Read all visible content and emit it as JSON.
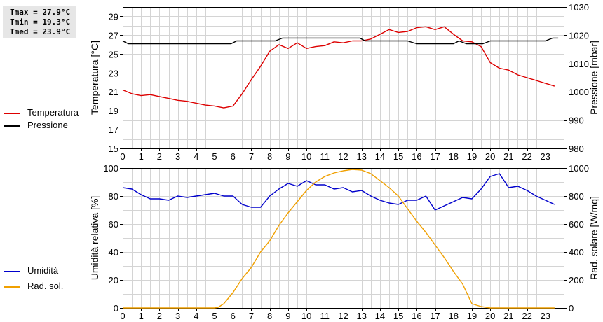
{
  "stats": {
    "tmax": "Tmax = 27.9°C",
    "tmin": "Tmin = 19.3°C",
    "tmed": "Tmed = 23.9°C"
  },
  "legend": {
    "temperature": "Temperatura",
    "pressure": "Pressione",
    "humidity": "Umidità",
    "radiation": "Rad. sol."
  },
  "colors": {
    "temperature": "#dd0000",
    "pressure": "#000000",
    "humidity": "#0000cc",
    "radiation": "#f0a000",
    "grid": "#d4d4d4"
  },
  "chart_data": [
    {
      "type": "line",
      "title": "",
      "xlim": [
        0,
        24
      ],
      "x_ticks": [
        0,
        1,
        2,
        3,
        4,
        5,
        6,
        7,
        8,
        9,
        10,
        11,
        12,
        13,
        14,
        15,
        16,
        17,
        18,
        19,
        20,
        21,
        22,
        23
      ],
      "grid": true,
      "left_axis": {
        "label": "Temperatura [°C]",
        "lim": [
          15,
          30
        ],
        "ticks": [
          15,
          17,
          19,
          21,
          23,
          25,
          27,
          29
        ]
      },
      "right_axis": {
        "label": "Pressione [mbar]",
        "lim": [
          980,
          1030
        ],
        "ticks": [
          980,
          990,
          1000,
          1010,
          1020,
          1030
        ]
      },
      "series": [
        {
          "name": "Temperatura",
          "axis": "left",
          "x": [
            0,
            0.5,
            1,
            1.5,
            2,
            2.5,
            3,
            3.5,
            4,
            4.5,
            5,
            5.5,
            6,
            6.5,
            7,
            7.5,
            8,
            8.5,
            9,
            9.5,
            10,
            10.5,
            11,
            11.5,
            12,
            12.5,
            13,
            13.5,
            14,
            14.5,
            15,
            15.5,
            16,
            16.5,
            17,
            17.5,
            18,
            18.5,
            19,
            19.5,
            20,
            20.5,
            21,
            21.5,
            22,
            22.5,
            23,
            23.5
          ],
          "y": [
            21.2,
            20.8,
            20.6,
            20.7,
            20.5,
            20.3,
            20.1,
            20.0,
            19.8,
            19.6,
            19.5,
            19.3,
            19.5,
            20.8,
            22.3,
            23.7,
            25.3,
            26.0,
            25.6,
            26.2,
            25.6,
            25.8,
            25.9,
            26.3,
            26.2,
            26.4,
            26.4,
            26.6,
            27.1,
            27.6,
            27.3,
            27.4,
            27.8,
            27.9,
            27.6,
            27.9,
            27.1,
            26.4,
            26.3,
            25.8,
            24.1,
            23.5,
            23.3,
            22.8,
            22.5,
            22.2,
            21.9,
            21.6
          ]
        },
        {
          "name": "Pressione",
          "axis": "right",
          "x": [
            0,
            0.3,
            0.6,
            1,
            1.5,
            2,
            2.5,
            3,
            3.5,
            4,
            4.5,
            5,
            5.5,
            5.9,
            6.2,
            6.5,
            7,
            7.5,
            8,
            8.3,
            8.7,
            9,
            9.5,
            10,
            10.5,
            11,
            11.5,
            12,
            12.5,
            12.9,
            13.2,
            13.5,
            14,
            14.5,
            15,
            15.5,
            16,
            16.5,
            17,
            17.5,
            18,
            18.3,
            18.7,
            19.2,
            19.6,
            20,
            20.5,
            21,
            21.5,
            22,
            22.5,
            23,
            23.4,
            23.7
          ],
          "y": [
            1018,
            1017,
            1017,
            1017,
            1017,
            1017,
            1017,
            1017,
            1017,
            1017,
            1017,
            1017,
            1017,
            1017,
            1018,
            1018,
            1018,
            1018,
            1018,
            1018,
            1019,
            1019,
            1019,
            1019,
            1019,
            1019,
            1019,
            1019,
            1019,
            1019,
            1018,
            1018,
            1018,
            1018,
            1018,
            1018,
            1017,
            1017,
            1017,
            1017,
            1017,
            1018,
            1017,
            1017,
            1017,
            1018,
            1018,
            1018,
            1018,
            1018,
            1018,
            1018,
            1019,
            1019
          ]
        }
      ]
    },
    {
      "type": "line",
      "title": "",
      "xlim": [
        0,
        24
      ],
      "x_ticks": [
        0,
        1,
        2,
        3,
        4,
        5,
        6,
        7,
        8,
        9,
        10,
        11,
        12,
        13,
        14,
        15,
        16,
        17,
        18,
        19,
        20,
        21,
        22,
        23
      ],
      "grid": true,
      "left_axis": {
        "label": "Umidità relativa [%]",
        "lim": [
          0,
          100
        ],
        "ticks": [
          0,
          20,
          40,
          60,
          80,
          100
        ]
      },
      "right_axis": {
        "label": "Rad. solare [W/mq]",
        "lim": [
          0,
          1000
        ],
        "ticks": [
          0,
          200,
          400,
          600,
          800,
          1000
        ]
      },
      "series": [
        {
          "name": "Umidità",
          "axis": "left",
          "x": [
            0,
            0.5,
            1,
            1.5,
            2,
            2.5,
            3,
            3.5,
            4,
            4.5,
            5,
            5.5,
            6,
            6.5,
            7,
            7.5,
            8,
            8.5,
            9,
            9.5,
            10,
            10.5,
            11,
            11.5,
            12,
            12.5,
            13,
            13.5,
            14,
            14.5,
            15,
            15.5,
            16,
            16.5,
            17,
            17.5,
            18,
            18.5,
            19,
            19.5,
            20,
            20.5,
            21,
            21.5,
            22,
            22.5,
            23,
            23.5
          ],
          "y": [
            86,
            85,
            81,
            78,
            78,
            77,
            80,
            79,
            80,
            81,
            82,
            80,
            80,
            74,
            72,
            72,
            80,
            85,
            89,
            87,
            91,
            88,
            88,
            85,
            86,
            83,
            84,
            80,
            77,
            75,
            74,
            77,
            77,
            80,
            70,
            73,
            76,
            79,
            78,
            85,
            94,
            96,
            86,
            87,
            84,
            80,
            77,
            74
          ]
        },
        {
          "name": "Rad. sol.",
          "axis": "right",
          "x": [
            0,
            0.5,
            1,
            1.5,
            2,
            2.5,
            3,
            3.5,
            4,
            4.5,
            5,
            5.2,
            5.5,
            6,
            6.5,
            7,
            7.5,
            8,
            8.5,
            9,
            9.5,
            10,
            10.5,
            11,
            11.5,
            12,
            12.5,
            13,
            13.5,
            14,
            14.5,
            15,
            15.5,
            16,
            16.5,
            17,
            17.5,
            18,
            18.5,
            19,
            19.5,
            20,
            20.5,
            21,
            21.5,
            22,
            22.5,
            23,
            23.5
          ],
          "y": [
            0,
            0,
            0,
            0,
            0,
            0,
            0,
            0,
            0,
            0,
            0,
            5,
            30,
            110,
            210,
            290,
            400,
            480,
            590,
            680,
            760,
            840,
            900,
            940,
            965,
            980,
            990,
            985,
            960,
            910,
            860,
            800,
            710,
            620,
            540,
            450,
            360,
            260,
            170,
            30,
            10,
            0,
            0,
            0,
            0,
            0,
            0,
            0,
            0
          ]
        }
      ]
    }
  ]
}
